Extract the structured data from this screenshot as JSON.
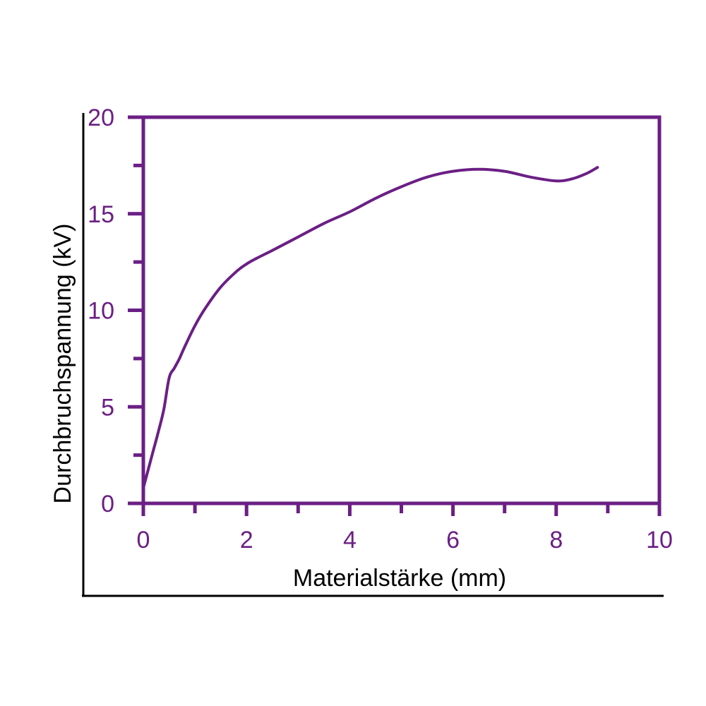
{
  "chart_data": {
    "type": "line",
    "title": "",
    "xlabel": "Materialstärke (mm)",
    "ylabel": "Durchbruchspannung (kV)",
    "xlim": [
      0,
      10
    ],
    "ylim": [
      0,
      20
    ],
    "x_ticks": [
      "0",
      "2",
      "4",
      "6",
      "8",
      "10"
    ],
    "y_ticks": [
      "0",
      "5",
      "10",
      "15",
      "20"
    ],
    "grid": false,
    "colors": {
      "plot": "#6b1f85",
      "frame": "#000000"
    },
    "series": [
      {
        "x": [
          0,
          0.1,
          0.2,
          0.3,
          0.4,
          0.5,
          0.6,
          0.7,
          0.8,
          1.0,
          1.2,
          1.5,
          1.8,
          2.0,
          2.2,
          2.5,
          3.0,
          3.5,
          4.0,
          4.5,
          5.0,
          5.5,
          6.0,
          6.5,
          7.0,
          7.5,
          8.0,
          8.3,
          8.6,
          8.8
        ],
        "y": [
          0.8,
          1.8,
          2.8,
          3.8,
          4.9,
          6.5,
          7.0,
          7.5,
          8.1,
          9.2,
          10.1,
          11.2,
          12.0,
          12.4,
          12.7,
          13.1,
          13.8,
          14.5,
          15.1,
          15.8,
          16.4,
          16.9,
          17.2,
          17.3,
          17.2,
          16.9,
          16.7,
          16.8,
          17.1,
          17.4
        ]
      }
    ]
  }
}
